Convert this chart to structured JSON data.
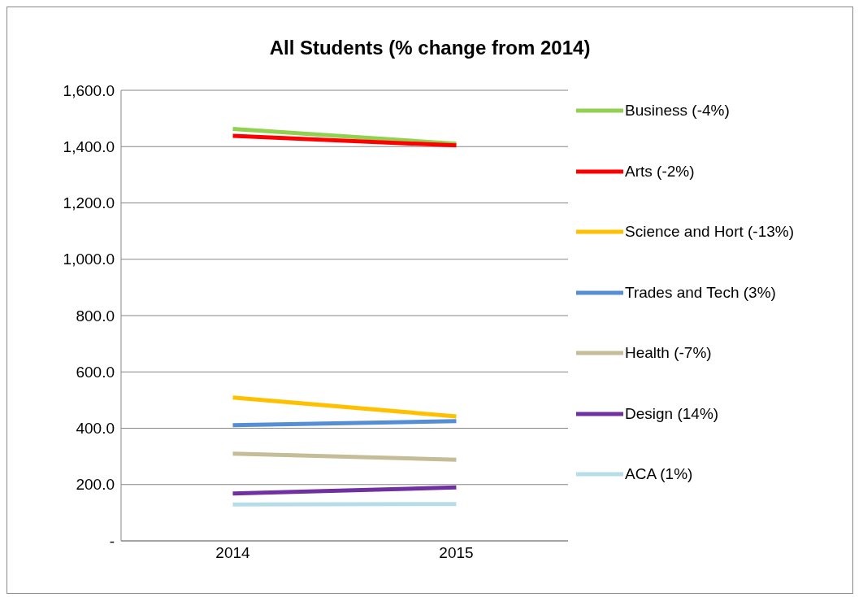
{
  "chart_data": {
    "type": "line",
    "title": "All Students (% change from 2014)",
    "categories": [
      "2014",
      "2015"
    ],
    "series": [
      {
        "name": "Business (-4%)",
        "color": "#92d050",
        "values": [
          1463,
          1410
        ]
      },
      {
        "name": "Arts (-2%)",
        "color": "#ff0000",
        "values": [
          1438,
          1404
        ]
      },
      {
        "name": "Science and Hort (-13%)",
        "color": "#ffc000",
        "values": [
          509,
          442
        ]
      },
      {
        "name": "Trades and Tech (3%)",
        "color": "#558ed5",
        "values": [
          411,
          425
        ]
      },
      {
        "name": "Health (-7%)",
        "color": "#c4bd97",
        "values": [
          310,
          288
        ]
      },
      {
        "name": "Design (14%)",
        "color": "#7030a0",
        "values": [
          168,
          190
        ]
      },
      {
        "name": "ACA (1%)",
        "color": "#b7dee8",
        "values": [
          129,
          131
        ]
      }
    ],
    "ylim": [
      0,
      1600
    ],
    "yticks": [
      {
        "value": 0,
        "label": "-"
      },
      {
        "value": 200,
        "label": "200.0"
      },
      {
        "value": 400,
        "label": "400.0"
      },
      {
        "value": 600,
        "label": "600.0"
      },
      {
        "value": 800,
        "label": "800.0"
      },
      {
        "value": 1000,
        "label": "1,000.0"
      },
      {
        "value": 1200,
        "label": "1,200.0"
      },
      {
        "value": 1400,
        "label": "1,400.0"
      },
      {
        "value": 1600,
        "label": "1,600.0"
      }
    ],
    "grid": "y",
    "legend": "right",
    "marker": "none",
    "line_style": "solid"
  }
}
